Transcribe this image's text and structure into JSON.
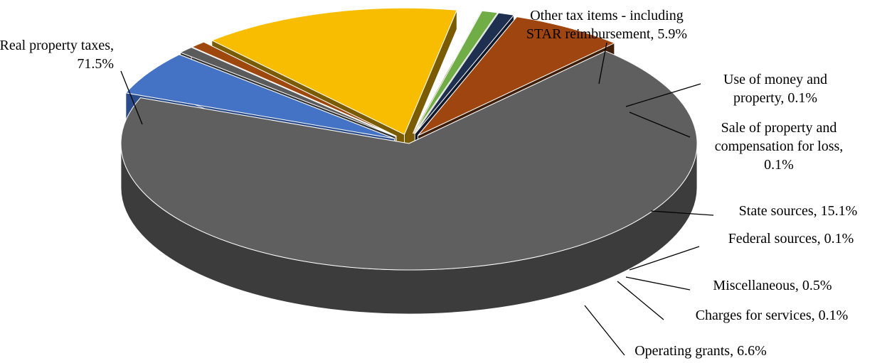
{
  "chart_data": {
    "type": "pie",
    "title": "",
    "slices": [
      {
        "key": "real",
        "label": "Real property taxes, 71.5%",
        "lines": [
          "Real property taxes,",
          "71.5%"
        ],
        "value": 71.5,
        "color": "#5f5f5f",
        "side": "#3c3c3c"
      },
      {
        "key": "optax",
        "label": "Other tax items - including STAR reimbursement, 5.9%",
        "lines": [
          "Other tax items - including",
          "STAR reimbursement, 5.9%"
        ],
        "value": 5.9,
        "color": "#4472c4",
        "side": "#2b4c8a"
      },
      {
        "key": "money",
        "label": "Use of money and property, 0.1%",
        "lines": [
          "Use of money and",
          "property, 0.1%"
        ],
        "value": 0.1,
        "color": "#5b5b5b",
        "side": "#333333"
      },
      {
        "key": "saleprop",
        "label": "Sale of property and compensation for loss, 0.1%",
        "lines": [
          "Sale of property and",
          "compensation for loss,",
          "0.1%"
        ],
        "value": 0.1,
        "color": "#9e480e",
        "side": "#5e2a06"
      },
      {
        "key": "state",
        "label": "State sources, 15.1%",
        "lines": [
          "State sources, 15.1%"
        ],
        "value": 15.1,
        "color": "#f9bd00",
        "side": "#7a5b00"
      },
      {
        "key": "federal",
        "label": "Federal sources, 0.1%",
        "lines": [
          "Federal sources, 0.1%"
        ],
        "value": 0.1,
        "color": "#ffffff",
        "side": "#cccccc"
      },
      {
        "key": "misc",
        "label": "Miscellaneous, 0.5%",
        "lines": [
          "Miscellaneous, 0.5%"
        ],
        "value": 0.5,
        "color": "#70ad47",
        "side": "#43692a"
      },
      {
        "key": "charges",
        "label": "Charges for services, 0.1%",
        "lines": [
          "Charges for services, 0.1%"
        ],
        "value": 0.1,
        "color": "#1f2f4f",
        "side": "#111a2c"
      },
      {
        "key": "grants",
        "label": "Operating grants, 6.6%",
        "lines": [
          "Operating grants, 6.6%"
        ],
        "value": 6.6,
        "color": "#9e4510",
        "side": "#3f1f0a"
      }
    ]
  }
}
